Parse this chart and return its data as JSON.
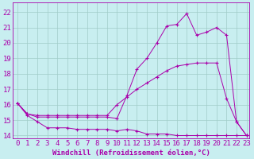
{
  "xlabel": "Windchill (Refroidissement éolien,°C)",
  "bg_color": "#c8eef0",
  "grid_color": "#a0ccc8",
  "line_color": "#aa00aa",
  "xlim": [
    -0.5,
    23.3
  ],
  "ylim": [
    13.8,
    22.6
  ],
  "yticks": [
    14,
    15,
    16,
    17,
    18,
    19,
    20,
    21,
    22
  ],
  "xticks": [
    0,
    1,
    2,
    3,
    4,
    5,
    6,
    7,
    8,
    9,
    10,
    11,
    12,
    13,
    14,
    15,
    16,
    17,
    18,
    19,
    20,
    21,
    22,
    23
  ],
  "series1_x": [
    0,
    1,
    2,
    3,
    4,
    5,
    6,
    7,
    8,
    9,
    10,
    11,
    12,
    13,
    14,
    15,
    16,
    17,
    18,
    19,
    20,
    21,
    22,
    23
  ],
  "series1_y": [
    16.1,
    15.3,
    14.9,
    14.5,
    14.5,
    14.5,
    14.4,
    14.4,
    14.4,
    14.4,
    14.3,
    14.4,
    14.3,
    14.1,
    14.1,
    14.1,
    14.0,
    14.0,
    14.0,
    14.0,
    14.0,
    14.0,
    14.0,
    14.0
  ],
  "series2_x": [
    0,
    1,
    2,
    3,
    4,
    5,
    6,
    7,
    8,
    9,
    10,
    11,
    12,
    13,
    14,
    15,
    16,
    17,
    18,
    19,
    20,
    21,
    22,
    23
  ],
  "series2_y": [
    16.1,
    15.4,
    15.3,
    15.3,
    15.3,
    15.3,
    15.3,
    15.3,
    15.3,
    15.3,
    16.0,
    16.5,
    17.0,
    17.4,
    17.8,
    18.2,
    18.5,
    18.6,
    18.7,
    18.7,
    18.7,
    16.4,
    14.9,
    14.0
  ],
  "series3_x": [
    0,
    1,
    2,
    3,
    4,
    5,
    6,
    7,
    8,
    9,
    10,
    11,
    12,
    13,
    14,
    15,
    16,
    17,
    18,
    19,
    20,
    21,
    22,
    23
  ],
  "series3_y": [
    16.1,
    15.4,
    15.2,
    15.2,
    15.2,
    15.2,
    15.2,
    15.2,
    15.2,
    15.2,
    15.1,
    16.6,
    18.3,
    19.0,
    20.0,
    21.1,
    21.2,
    21.9,
    20.5,
    20.7,
    21.0,
    20.5,
    14.9,
    14.0
  ],
  "fontsize": 6.5
}
